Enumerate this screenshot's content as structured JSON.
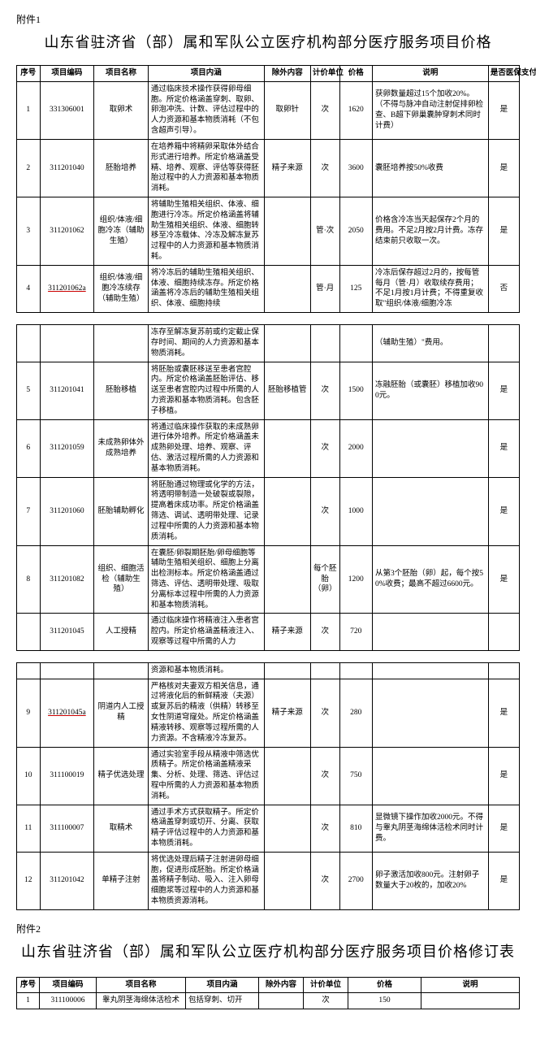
{
  "attach1_label": "附件1",
  "title1": "山东省驻济省（部）属和军队公立医疗机构部分医疗服务项目价格",
  "headers": {
    "num": "序号",
    "code": "项目编码",
    "name": "项目名称",
    "desc": "项目内涵",
    "excl": "除外内容",
    "unit": "计价单位",
    "price": "价格",
    "note": "说明",
    "ins": "是否医保支付"
  },
  "group1": [
    {
      "num": "1",
      "code": "331306001",
      "name": "取卵术",
      "desc": "通过临床技术操作获得卵母细胞。所定价格涵盖穿刺、取卵、卵泡冲洗、计数、评估过程中的人力资源和基本物质消耗（不包含超声引导）。",
      "excl": "取卵针",
      "unit": "次",
      "price": "1620",
      "note": "获卵数量超过15个加收20%。（不得与脉冲自动注射促排卵检查、B超下卵巢囊肿穿刺术同时计费）",
      "ins": "是"
    },
    {
      "num": "2",
      "code": "311201040",
      "name": "胚胎培养",
      "desc": "在培养箱中将精卵采取体外结合形式进行培养。所定价格涵盖受精、培养、观察、评估等获得胚胎过程中的人力资源和基本物质消耗。",
      "excl": "精子来源",
      "unit": "次",
      "price": "3600",
      "note": "囊胚培养按50%收费",
      "ins": "是"
    },
    {
      "num": "3",
      "code": "311201062",
      "name": "组织/体液/细胞冷冻（辅助生殖）",
      "desc": "将辅助生殖相关组织、体液、细胞进行冷冻。所定价格涵盖将辅助生殖相关组织、体液、细胞转移至冷冻载体、冷冻及解冻复苏过程中的人力资源和基本物质消耗。",
      "excl": "",
      "unit": "管·次",
      "price": "2050",
      "note": "价格含冷冻当天起保存2个月的费用。不足2月按2月计费。冻存结束前只收取一次。",
      "ins": "是"
    },
    {
      "num": "4",
      "code": "311201062a",
      "code_underline": true,
      "name": "组织/体液/细胞冷冻续存（辅助生殖）",
      "desc": "将冷冻后的辅助生殖相关组织、体液、细胞持续冻存。所定价格涵盖将冷冻后的辅助生殖相关组织、体液、细胞持续",
      "excl": "",
      "unit": "管·月",
      "price": "125",
      "note": "冷冻后保存超过2月的，按每管每月（管·月）收取续存费用；不足1月按1月计费；不得重复收取\"组织/体液/细胞冷冻",
      "ins": "否"
    }
  ],
  "group2": [
    {
      "num": "",
      "code": "",
      "name": "",
      "desc": "冻存至解冻复苏前或约定截止保存时间、期间的人力资源和基本物质消耗。",
      "excl": "",
      "unit": "",
      "price": "",
      "note": "（辅助生殖）\"费用。",
      "ins": ""
    },
    {
      "num": "5",
      "code": "311201041",
      "name": "胚胎移植",
      "desc": "将胚胎或囊胚移送至患者宫腔内。所定价格涵盖胚胎评估、移送至患者宫腔内过程中所需的人力资源和基本物质消耗。包含胚子移植。",
      "excl": "胚胎移植管",
      "unit": "次",
      "price": "1500",
      "note": "冻融胚胎（或囊胚）移植加收900元。",
      "ins": "是"
    },
    {
      "num": "6",
      "code": "311201059",
      "name": "未成熟卵体外成熟培养",
      "desc": "将通过临床操作获取的未成熟卵进行体外培养。所定价格涵盖未成熟卵处理、培养、观察、评估、激活过程所需的人力资源和基本物质消耗。",
      "excl": "",
      "unit": "次",
      "price": "2000",
      "note": "",
      "ins": "是"
    },
    {
      "num": "7",
      "code": "311201060",
      "name": "胚胎辅助孵化",
      "desc": "将胚胎通过物理或化学的方法，将透明带制造一处破裂或裂隙，提高着床成功率。所定价格涵盖筛选、调试、透明带处理、记录过程中所需的人力资源和基本物质消耗。",
      "excl": "",
      "unit": "次",
      "price": "1000",
      "note": "",
      "ins": "是"
    },
    {
      "num": "8",
      "code": "311201082",
      "name": "组织、细胞活检（辅助生殖）",
      "desc": "在囊胚/卵裂期胚胎/卵母细胞等辅助生殖相关组织、细胞上分离出检测标本。所定价格涵盖通过筛选、评估、透明带处理、吸取分离标本过程中所需的人力资源和基本物质消耗。",
      "excl": "",
      "unit": "每个胚胎（卵）",
      "price": "1200",
      "note": "从第3个胚胎（卵）起，每个按50%收费；最高不超过6600元。",
      "ins": "是"
    },
    {
      "num": "",
      "code": "311201045",
      "name": "人工授精",
      "desc": "通过临床操作将精液注入患者宫腔内。所定价格涵盖精液注入、观察等过程中所需的人力",
      "excl": "精子来源",
      "unit": "次",
      "price": "720",
      "note": "",
      "ins": ""
    }
  ],
  "group3": [
    {
      "num": "",
      "code": "",
      "name": "",
      "desc": "资源和基本物质消耗。",
      "excl": "",
      "unit": "",
      "price": "",
      "note": "",
      "ins": ""
    },
    {
      "num": "9",
      "code": "311201045a",
      "code_underline": true,
      "name": "阴道内人工授精",
      "desc": "严格核对夫妻双方相关信息，通过将液化后的新鲜精液（夫源）或复苏后的精液（供精）转移至女性阴道穹窿处。所定价格涵盖精液转移、观察等过程所需的人力资源。不含精液冷冻复苏。",
      "excl": "精子来源",
      "unit": "次",
      "price": "280",
      "note": "",
      "ins": "是"
    },
    {
      "num": "10",
      "code": "311100019",
      "name": "精子优选处理",
      "desc": "通过实验室手段从精液中筛选优质精子。所定价格涵盖精液采集、分析、处理、筛选、评估过程中所需的人力资源和基本物质消耗。",
      "excl": "",
      "unit": "次",
      "price": "750",
      "note": "",
      "ins": "是"
    },
    {
      "num": "11",
      "code": "311100007",
      "name": "取精术",
      "desc": "通过手术方式获取精子。所定价格涵盖穿刺或切开、分离、获取精子评估过程中的人力资源和基本物质消耗。",
      "excl": "",
      "unit": "次",
      "price": "810",
      "note": "显微镜下操作加收2000元。不得与睾丸阴茎海绵体活检术同时计费。",
      "ins": "是"
    },
    {
      "num": "12",
      "code": "311201042",
      "name": "单精子注射",
      "desc": "将优选处理后精子注射进卵母细胞，促进形成胚胎。所定价格涵盖将精子制动、吸入、注入卵母细胞浆等过程中的人力资源和基本物质资源消耗。",
      "excl": "",
      "unit": "次",
      "price": "2700",
      "note": "卵子激活加收800元。注射卵子数量大于20枚的，加收20%",
      "ins": "是"
    }
  ],
  "attach2_label": "附件2",
  "title2": "山东省驻济省（部）属和军队公立医疗机构部分医疗服务项目价格修订表",
  "table2_headers": {
    "num": "序号",
    "code": "项目编码",
    "name": "项目名称",
    "desc": "项目内涵",
    "excl": "除外内容",
    "unit": "计价单位",
    "price": "价格",
    "note": "说明"
  },
  "table2_row": {
    "num": "1",
    "code": "311100006",
    "name": "睾丸阴茎海绵体活检术",
    "desc": "包括穿刺、切开",
    "excl": "",
    "unit": "次",
    "price": "150",
    "note": ""
  }
}
